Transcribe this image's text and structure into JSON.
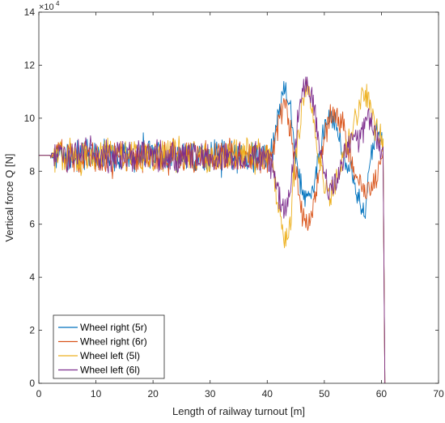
{
  "chart_data": {
    "type": "line",
    "xlabel": "Length of railway turnout [m]",
    "ylabel": "Vertical force Q [N]",
    "xlim": [
      0,
      70
    ],
    "ylim": [
      0,
      14
    ],
    "y_multiplier": "×10",
    "y_multiplier_exp": "4",
    "x_ticks": [
      "0",
      "10",
      "20",
      "30",
      "40",
      "50",
      "60",
      "70"
    ],
    "y_ticks": [
      "0",
      "2",
      "4",
      "6",
      "8",
      "10",
      "12",
      "14"
    ],
    "grid": false,
    "legend_position": "bottom-left",
    "series": [
      {
        "name": "Wheel right (5r)",
        "color": "#0072BD",
        "x": [
          0,
          2,
          4,
          8,
          12,
          16,
          20,
          24,
          28,
          32,
          36,
          40,
          41,
          42,
          43,
          44,
          45,
          46,
          47,
          48,
          49,
          50,
          51,
          52,
          53,
          54,
          55,
          56,
          57,
          58,
          59,
          60,
          60.3,
          60.6
        ],
        "values": [
          8.6,
          8.6,
          8.5,
          8.6,
          8.5,
          8.6,
          8.6,
          8.5,
          8.6,
          8.6,
          8.5,
          8.6,
          9.0,
          10.3,
          11.2,
          10.6,
          8.5,
          7.3,
          6.8,
          7.1,
          8.6,
          9.6,
          10.2,
          9.7,
          9.0,
          8.3,
          7.8,
          6.9,
          6.4,
          8.2,
          9.6,
          9.3,
          8.6,
          0
        ]
      },
      {
        "name": "Wheel right (6r)",
        "color": "#D95319",
        "x": [
          0,
          2,
          4,
          8,
          12,
          16,
          20,
          24,
          28,
          32,
          36,
          40,
          41,
          42,
          43,
          44,
          45,
          46,
          47,
          48,
          49,
          50,
          51,
          52,
          53,
          54,
          55,
          56,
          57,
          58,
          59,
          60,
          60.3,
          60.6
        ],
        "values": [
          8.6,
          8.6,
          8.6,
          8.5,
          8.6,
          8.6,
          8.5,
          8.6,
          8.5,
          8.6,
          8.6,
          8.5,
          8.8,
          9.8,
          10.5,
          9.6,
          8.0,
          6.6,
          6.0,
          6.4,
          7.8,
          9.2,
          10.0,
          10.1,
          9.6,
          9.0,
          8.2,
          7.6,
          7.2,
          7.4,
          7.7,
          8.3,
          8.5,
          0
        ]
      },
      {
        "name": "Wheel left (5l)",
        "color": "#EDB120",
        "x": [
          0,
          2,
          4,
          8,
          12,
          16,
          20,
          24,
          28,
          32,
          36,
          40,
          41,
          42,
          43,
          44,
          45,
          46,
          47,
          48,
          49,
          50,
          51,
          52,
          53,
          54,
          55,
          56,
          57,
          58,
          59,
          60,
          60.3,
          60.6
        ],
        "values": [
          8.6,
          8.6,
          8.7,
          8.5,
          8.7,
          8.6,
          8.5,
          8.7,
          8.6,
          8.5,
          8.7,
          8.6,
          8.0,
          6.7,
          5.6,
          5.9,
          8.6,
          10.3,
          11.0,
          10.4,
          8.6,
          7.6,
          7.1,
          7.6,
          8.3,
          9.0,
          9.6,
          10.4,
          11.1,
          10.4,
          9.8,
          9.3,
          8.8,
          0
        ]
      },
      {
        "name": "Wheel left (6l)",
        "color": "#7E2F8E",
        "x": [
          0,
          2,
          4,
          8,
          12,
          16,
          20,
          24,
          28,
          32,
          36,
          40,
          41,
          42,
          43,
          44,
          45,
          46,
          47,
          48,
          49,
          50,
          51,
          52,
          53,
          54,
          55,
          56,
          57,
          58,
          59,
          60,
          60.3,
          60.6
        ],
        "values": [
          8.6,
          8.6,
          8.5,
          8.7,
          8.5,
          8.6,
          8.6,
          8.5,
          8.6,
          8.6,
          8.5,
          8.6,
          8.2,
          7.1,
          6.5,
          7.2,
          9.2,
          11.0,
          11.4,
          10.8,
          9.0,
          7.8,
          7.3,
          7.5,
          8.2,
          8.9,
          9.2,
          9.1,
          9.6,
          10.0,
          9.3,
          8.7,
          8.5,
          0
        ]
      }
    ]
  }
}
